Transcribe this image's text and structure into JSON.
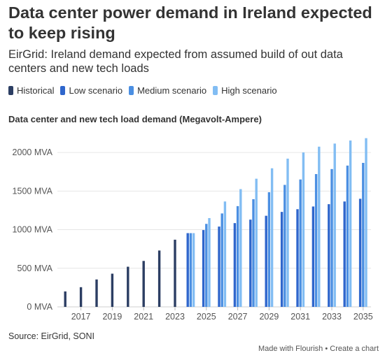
{
  "title": "Data center power demand in Ireland expected to keep rising",
  "subtitle": "EirGrid: Ireland demand expected from assumed build of out data centers and new tech loads",
  "legend": [
    {
      "label": "Historical",
      "color": "#2c3e63"
    },
    {
      "label": "Low scenario",
      "color": "#2f66cc"
    },
    {
      "label": "Medium scenario",
      "color": "#4b8fe2"
    },
    {
      "label": "High scenario",
      "color": "#82bdf3"
    }
  ],
  "source": "Source: EirGrid, SONI",
  "footer": {
    "made_with": "Made with Flourish",
    "separator": "•",
    "create": "Create a chart"
  },
  "chart_data": {
    "type": "bar",
    "title": "Data center and new tech load demand (Megavolt-Ampere)",
    "xlabel": "",
    "ylabel": "",
    "ylim": [
      0,
      2200
    ],
    "y_ticks": [
      0,
      500,
      1000,
      1500,
      2000
    ],
    "y_tick_labels": [
      "0 MVA",
      "500 MVA",
      "1000 MVA",
      "1500 MVA",
      "2000 MVA"
    ],
    "x_tick_labels": [
      "2017",
      "2019",
      "2021",
      "2023",
      "2025",
      "2027",
      "2029",
      "2031",
      "2033",
      "2035"
    ],
    "categories": [
      2016,
      2017,
      2018,
      2019,
      2020,
      2021,
      2022,
      2023,
      2024,
      2025,
      2026,
      2027,
      2028,
      2029,
      2030,
      2031,
      2032,
      2033,
      2034,
      2035
    ],
    "grid": true,
    "legend_position": "top-left",
    "series": [
      {
        "name": "Historical",
        "color": "#2c3e63",
        "values": [
          200,
          255,
          355,
          430,
          520,
          595,
          730,
          870,
          null,
          null,
          null,
          null,
          null,
          null,
          null,
          null,
          null,
          null,
          null,
          null
        ]
      },
      {
        "name": "Low scenario",
        "color": "#2f66cc",
        "values": [
          null,
          null,
          null,
          null,
          null,
          null,
          null,
          null,
          955,
          995,
          1040,
          1085,
          1130,
          1180,
          1230,
          1265,
          1300,
          1330,
          1365,
          1400
        ]
      },
      {
        "name": "Medium scenario",
        "color": "#4b8fe2",
        "values": [
          null,
          null,
          null,
          null,
          null,
          null,
          null,
          null,
          955,
          1075,
          1210,
          1305,
          1395,
          1485,
          1580,
          1650,
          1720,
          1785,
          1830,
          1865
        ]
      },
      {
        "name": "High scenario",
        "color": "#82bdf3",
        "values": [
          null,
          null,
          null,
          null,
          null,
          null,
          null,
          null,
          955,
          1150,
          1365,
          1525,
          1660,
          1795,
          1920,
          2000,
          2075,
          2115,
          2155,
          2185
        ]
      }
    ]
  }
}
